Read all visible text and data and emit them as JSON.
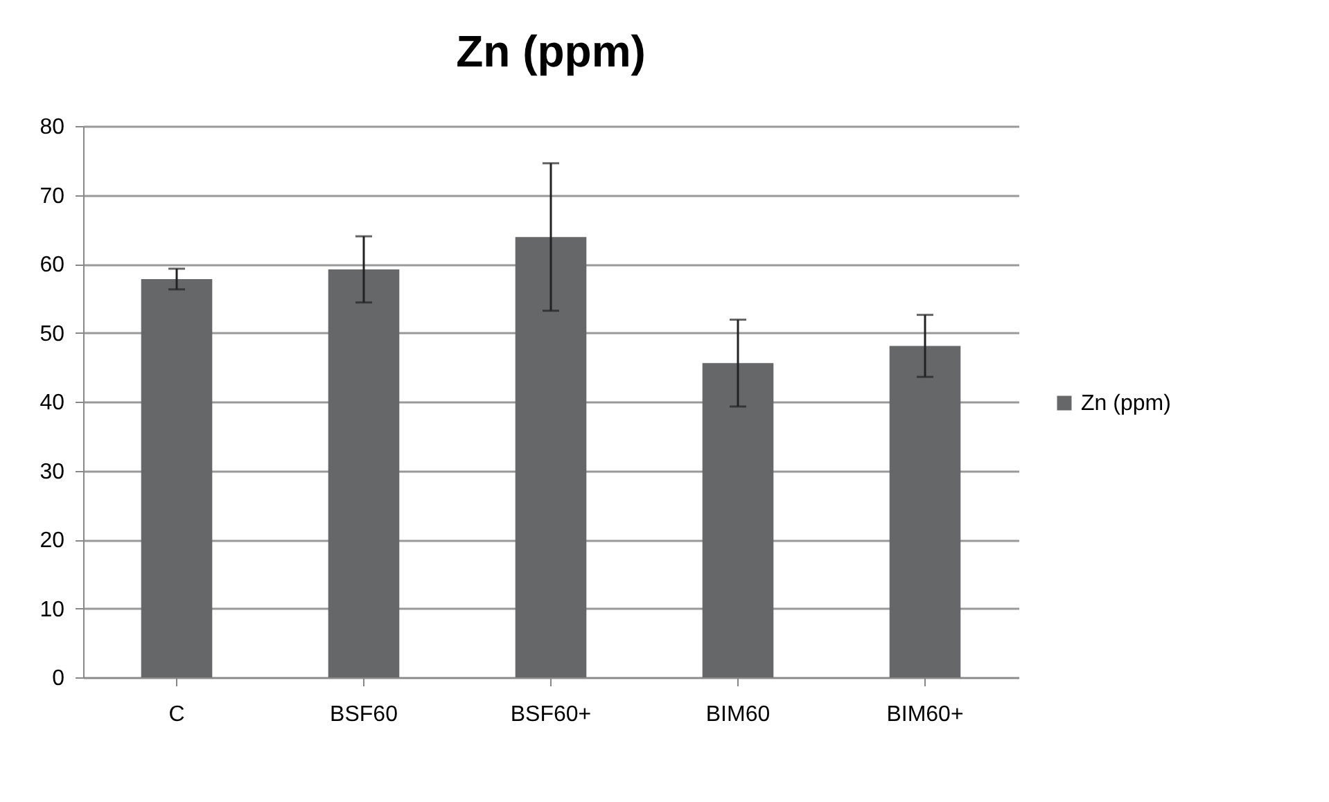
{
  "chart_data": {
    "type": "bar",
    "title": "Zn (ppm)",
    "categories": [
      "C",
      "BSF60",
      "BSF60+",
      "BIM60",
      "BIM60+"
    ],
    "series": [
      {
        "name": "Zn (ppm)",
        "color": "#666769",
        "values": [
          57.8,
          59.2,
          63.9,
          45.6,
          48.1
        ],
        "errors": [
          1.5,
          4.8,
          10.7,
          6.3,
          4.5
        ]
      }
    ],
    "ylim": [
      0,
      80
    ],
    "yticks": [
      0,
      10,
      20,
      30,
      40,
      50,
      60,
      70,
      80
    ],
    "grid": "y",
    "legend": "right"
  }
}
